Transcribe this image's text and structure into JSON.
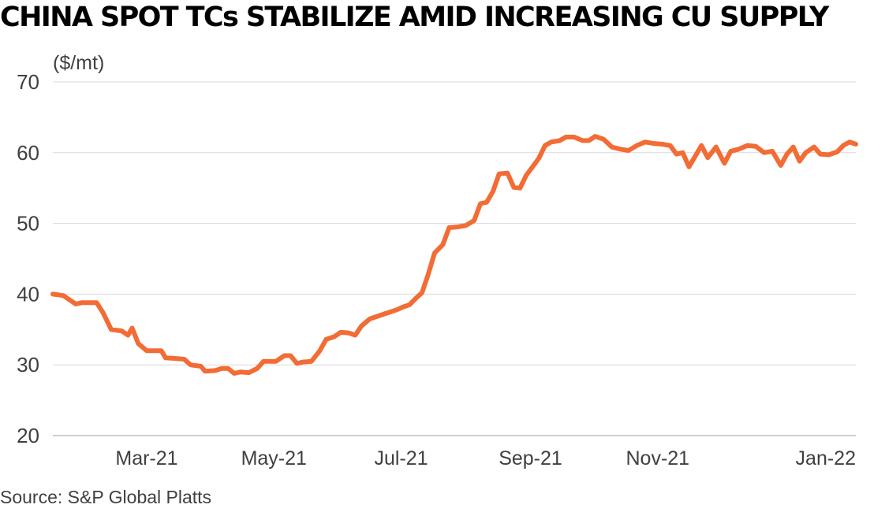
{
  "chart_data": {
    "type": "line",
    "title": "CHINA SPOT TCs STABILIZE AMID INCREASING CU SUPPLY",
    "ylabel": "($/mt)",
    "xlabel": "",
    "ylim": [
      20,
      70
    ],
    "yticks": [
      "70",
      "60",
      "50",
      "40",
      "30",
      "20"
    ],
    "xticks": [
      "Mar-21",
      "May-21",
      "Jul-21",
      "Sep-21",
      "Nov-21",
      "Jan-22"
    ],
    "grid": true,
    "series": [
      {
        "name": "",
        "color": "#f26c35",
        "points": [
          [
            "2021-01-15",
            40.0
          ],
          [
            "2021-01-20",
            39.8
          ],
          [
            "2021-01-26",
            38.6
          ],
          [
            "2021-01-29",
            38.8
          ],
          [
            "2021-02-05",
            38.8
          ],
          [
            "2021-02-08",
            37.4
          ],
          [
            "2021-02-12",
            35.0
          ],
          [
            "2021-02-17",
            34.8
          ],
          [
            "2021-02-20",
            34.2
          ],
          [
            "2021-02-22",
            35.2
          ],
          [
            "2021-02-25",
            33.0
          ],
          [
            "2021-03-01",
            32.0
          ],
          [
            "2021-03-08",
            32.0
          ],
          [
            "2021-03-10",
            31.0
          ],
          [
            "2021-03-15",
            30.9
          ],
          [
            "2021-03-19",
            30.8
          ],
          [
            "2021-03-22",
            30.0
          ],
          [
            "2021-03-27",
            29.8
          ],
          [
            "2021-03-29",
            29.1
          ],
          [
            "2021-04-03",
            29.2
          ],
          [
            "2021-04-06",
            29.5
          ],
          [
            "2021-04-09",
            29.5
          ],
          [
            "2021-04-12",
            28.8
          ],
          [
            "2021-04-15",
            29.0
          ],
          [
            "2021-04-19",
            28.9
          ],
          [
            "2021-04-23",
            29.5
          ],
          [
            "2021-04-26",
            30.5
          ],
          [
            "2021-05-02",
            30.5
          ],
          [
            "2021-05-06",
            31.3
          ],
          [
            "2021-05-09",
            31.3
          ],
          [
            "2021-05-12",
            30.2
          ],
          [
            "2021-05-15",
            30.4
          ],
          [
            "2021-05-19",
            30.5
          ],
          [
            "2021-05-23",
            32.0
          ],
          [
            "2021-05-26",
            33.6
          ],
          [
            "2021-05-30",
            34.0
          ],
          [
            "2021-06-02",
            34.6
          ],
          [
            "2021-06-06",
            34.5
          ],
          [
            "2021-06-09",
            34.2
          ],
          [
            "2021-06-12",
            35.5
          ],
          [
            "2021-06-16",
            36.5
          ],
          [
            "2021-06-19",
            36.8
          ],
          [
            "2021-06-23",
            37.2
          ],
          [
            "2021-06-26",
            37.5
          ],
          [
            "2021-06-29",
            37.8
          ],
          [
            "2021-07-02",
            38.2
          ],
          [
            "2021-07-05",
            38.5
          ],
          [
            "2021-07-08",
            39.4
          ],
          [
            "2021-07-11",
            40.2
          ],
          [
            "2021-07-14",
            42.8
          ],
          [
            "2021-07-17",
            45.8
          ],
          [
            "2021-07-21",
            47.0
          ],
          [
            "2021-07-24",
            49.4
          ],
          [
            "2021-07-28",
            49.5
          ],
          [
            "2021-08-01",
            49.7
          ],
          [
            "2021-08-05",
            50.4
          ],
          [
            "2021-08-08",
            52.8
          ],
          [
            "2021-08-11",
            53.0
          ],
          [
            "2021-08-14",
            54.5
          ],
          [
            "2021-08-17",
            57.0
          ],
          [
            "2021-08-21",
            57.1
          ],
          [
            "2021-08-24",
            55.1
          ],
          [
            "2021-08-27",
            55.0
          ],
          [
            "2021-08-30",
            56.8
          ],
          [
            "2021-09-02",
            58.0
          ],
          [
            "2021-09-05",
            59.2
          ],
          [
            "2021-09-08",
            61.0
          ],
          [
            "2021-09-11",
            61.5
          ],
          [
            "2021-09-15",
            61.7
          ],
          [
            "2021-09-18",
            62.2
          ],
          [
            "2021-09-22",
            62.2
          ],
          [
            "2021-09-26",
            61.7
          ],
          [
            "2021-09-29",
            61.7
          ],
          [
            "2021-10-02",
            62.3
          ],
          [
            "2021-10-06",
            61.9
          ],
          [
            "2021-10-10",
            60.8
          ],
          [
            "2021-10-14",
            60.5
          ],
          [
            "2021-10-18",
            60.3
          ],
          [
            "2021-10-22",
            61.0
          ],
          [
            "2021-10-26",
            61.5
          ],
          [
            "2021-10-30",
            61.3
          ],
          [
            "2021-11-03",
            61.2
          ],
          [
            "2021-11-07",
            61.0
          ],
          [
            "2021-11-10",
            59.8
          ],
          [
            "2021-11-13",
            60.0
          ],
          [
            "2021-11-16",
            58.0
          ],
          [
            "2021-11-19",
            59.5
          ],
          [
            "2021-11-22",
            61.0
          ],
          [
            "2021-11-25",
            59.3
          ],
          [
            "2021-11-29",
            60.8
          ],
          [
            "2021-12-03",
            58.5
          ],
          [
            "2021-12-06",
            60.2
          ],
          [
            "2021-12-10",
            60.5
          ],
          [
            "2021-12-14",
            61.0
          ],
          [
            "2021-12-18",
            60.9
          ],
          [
            "2021-12-22",
            60.0
          ],
          [
            "2021-12-26",
            60.2
          ],
          [
            "2021-12-30",
            58.2
          ],
          [
            "2022-01-02",
            59.8
          ],
          [
            "2022-01-05",
            60.8
          ],
          [
            "2022-01-08",
            58.8
          ],
          [
            "2022-01-11",
            60.0
          ],
          [
            "2022-01-15",
            60.8
          ],
          [
            "2022-01-18",
            59.8
          ],
          [
            "2022-01-22",
            59.7
          ],
          [
            "2022-01-26",
            60.1
          ],
          [
            "2022-01-29",
            61.0
          ],
          [
            "2022-02-01",
            61.5
          ],
          [
            "2022-02-04",
            61.2
          ]
        ]
      }
    ]
  },
  "footer": {
    "source": "Source: S&P Global Platts"
  }
}
